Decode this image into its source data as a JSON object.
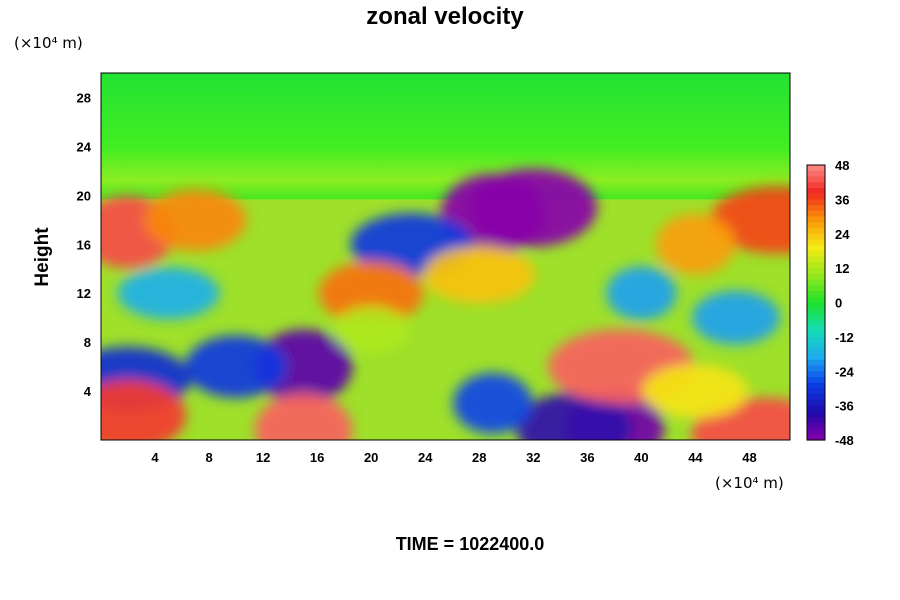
{
  "chart_data": {
    "type": "heatmap",
    "title": "zonal velocity",
    "ylabel": "Height",
    "xlabel": "",
    "x_unit": "(×10⁴ m)",
    "y_unit": "(×10⁴ m)",
    "xlim": [
      0,
      51
    ],
    "ylim": [
      0,
      30
    ],
    "x_ticks": [
      "4",
      "8",
      "12",
      "16",
      "20",
      "24",
      "28",
      "32",
      "36",
      "40",
      "44",
      "48"
    ],
    "y_ticks": [
      "4",
      "8",
      "12",
      "16",
      "20",
      "24",
      "28"
    ],
    "colorbar": {
      "range": [
        -48,
        48
      ],
      "labels": [
        "48",
        "36",
        "24",
        "12",
        "0",
        "-12",
        "-24",
        "-36",
        "-48"
      ]
    },
    "footer": "TIME = 1022400.0",
    "features": [
      {
        "x": 15,
        "y": 6,
        "value": -44
      },
      {
        "x": 10,
        "y": 6,
        "value": -30
      },
      {
        "x": 2,
        "y": 5,
        "value": -32
      },
      {
        "x": 29,
        "y": 18.5,
        "value": -50
      },
      {
        "x": 32,
        "y": 19,
        "value": -48
      },
      {
        "x": 23,
        "y": 16,
        "value": -30
      },
      {
        "x": 38,
        "y": 1,
        "value": -46
      },
      {
        "x": 35,
        "y": 1,
        "value": -40
      },
      {
        "x": 38.5,
        "y": 6,
        "value": 44
      },
      {
        "x": 15,
        "y": 0.8,
        "value": 44
      },
      {
        "x": 2,
        "y": 2,
        "value": 40
      },
      {
        "x": 49,
        "y": 0.5,
        "value": 42
      },
      {
        "x": 2,
        "y": 17,
        "value": 42
      },
      {
        "x": 7,
        "y": 18,
        "value": 30
      },
      {
        "x": 50,
        "y": 18,
        "value": 36
      },
      {
        "x": 44,
        "y": 16,
        "value": 28
      },
      {
        "x": 20,
        "y": 12,
        "value": 32
      },
      {
        "x": 28,
        "y": 13.5,
        "value": 24
      },
      {
        "x": 29,
        "y": 3,
        "value": -28
      },
      {
        "x": 47,
        "y": 10,
        "value": -20
      },
      {
        "x": 5,
        "y": 12,
        "value": -18
      },
      {
        "x": 40,
        "y": 12,
        "value": -20
      },
      {
        "x": 20,
        "y": 9,
        "value": 12
      },
      {
        "x": 44,
        "y": 4,
        "value": 20
      }
    ]
  }
}
